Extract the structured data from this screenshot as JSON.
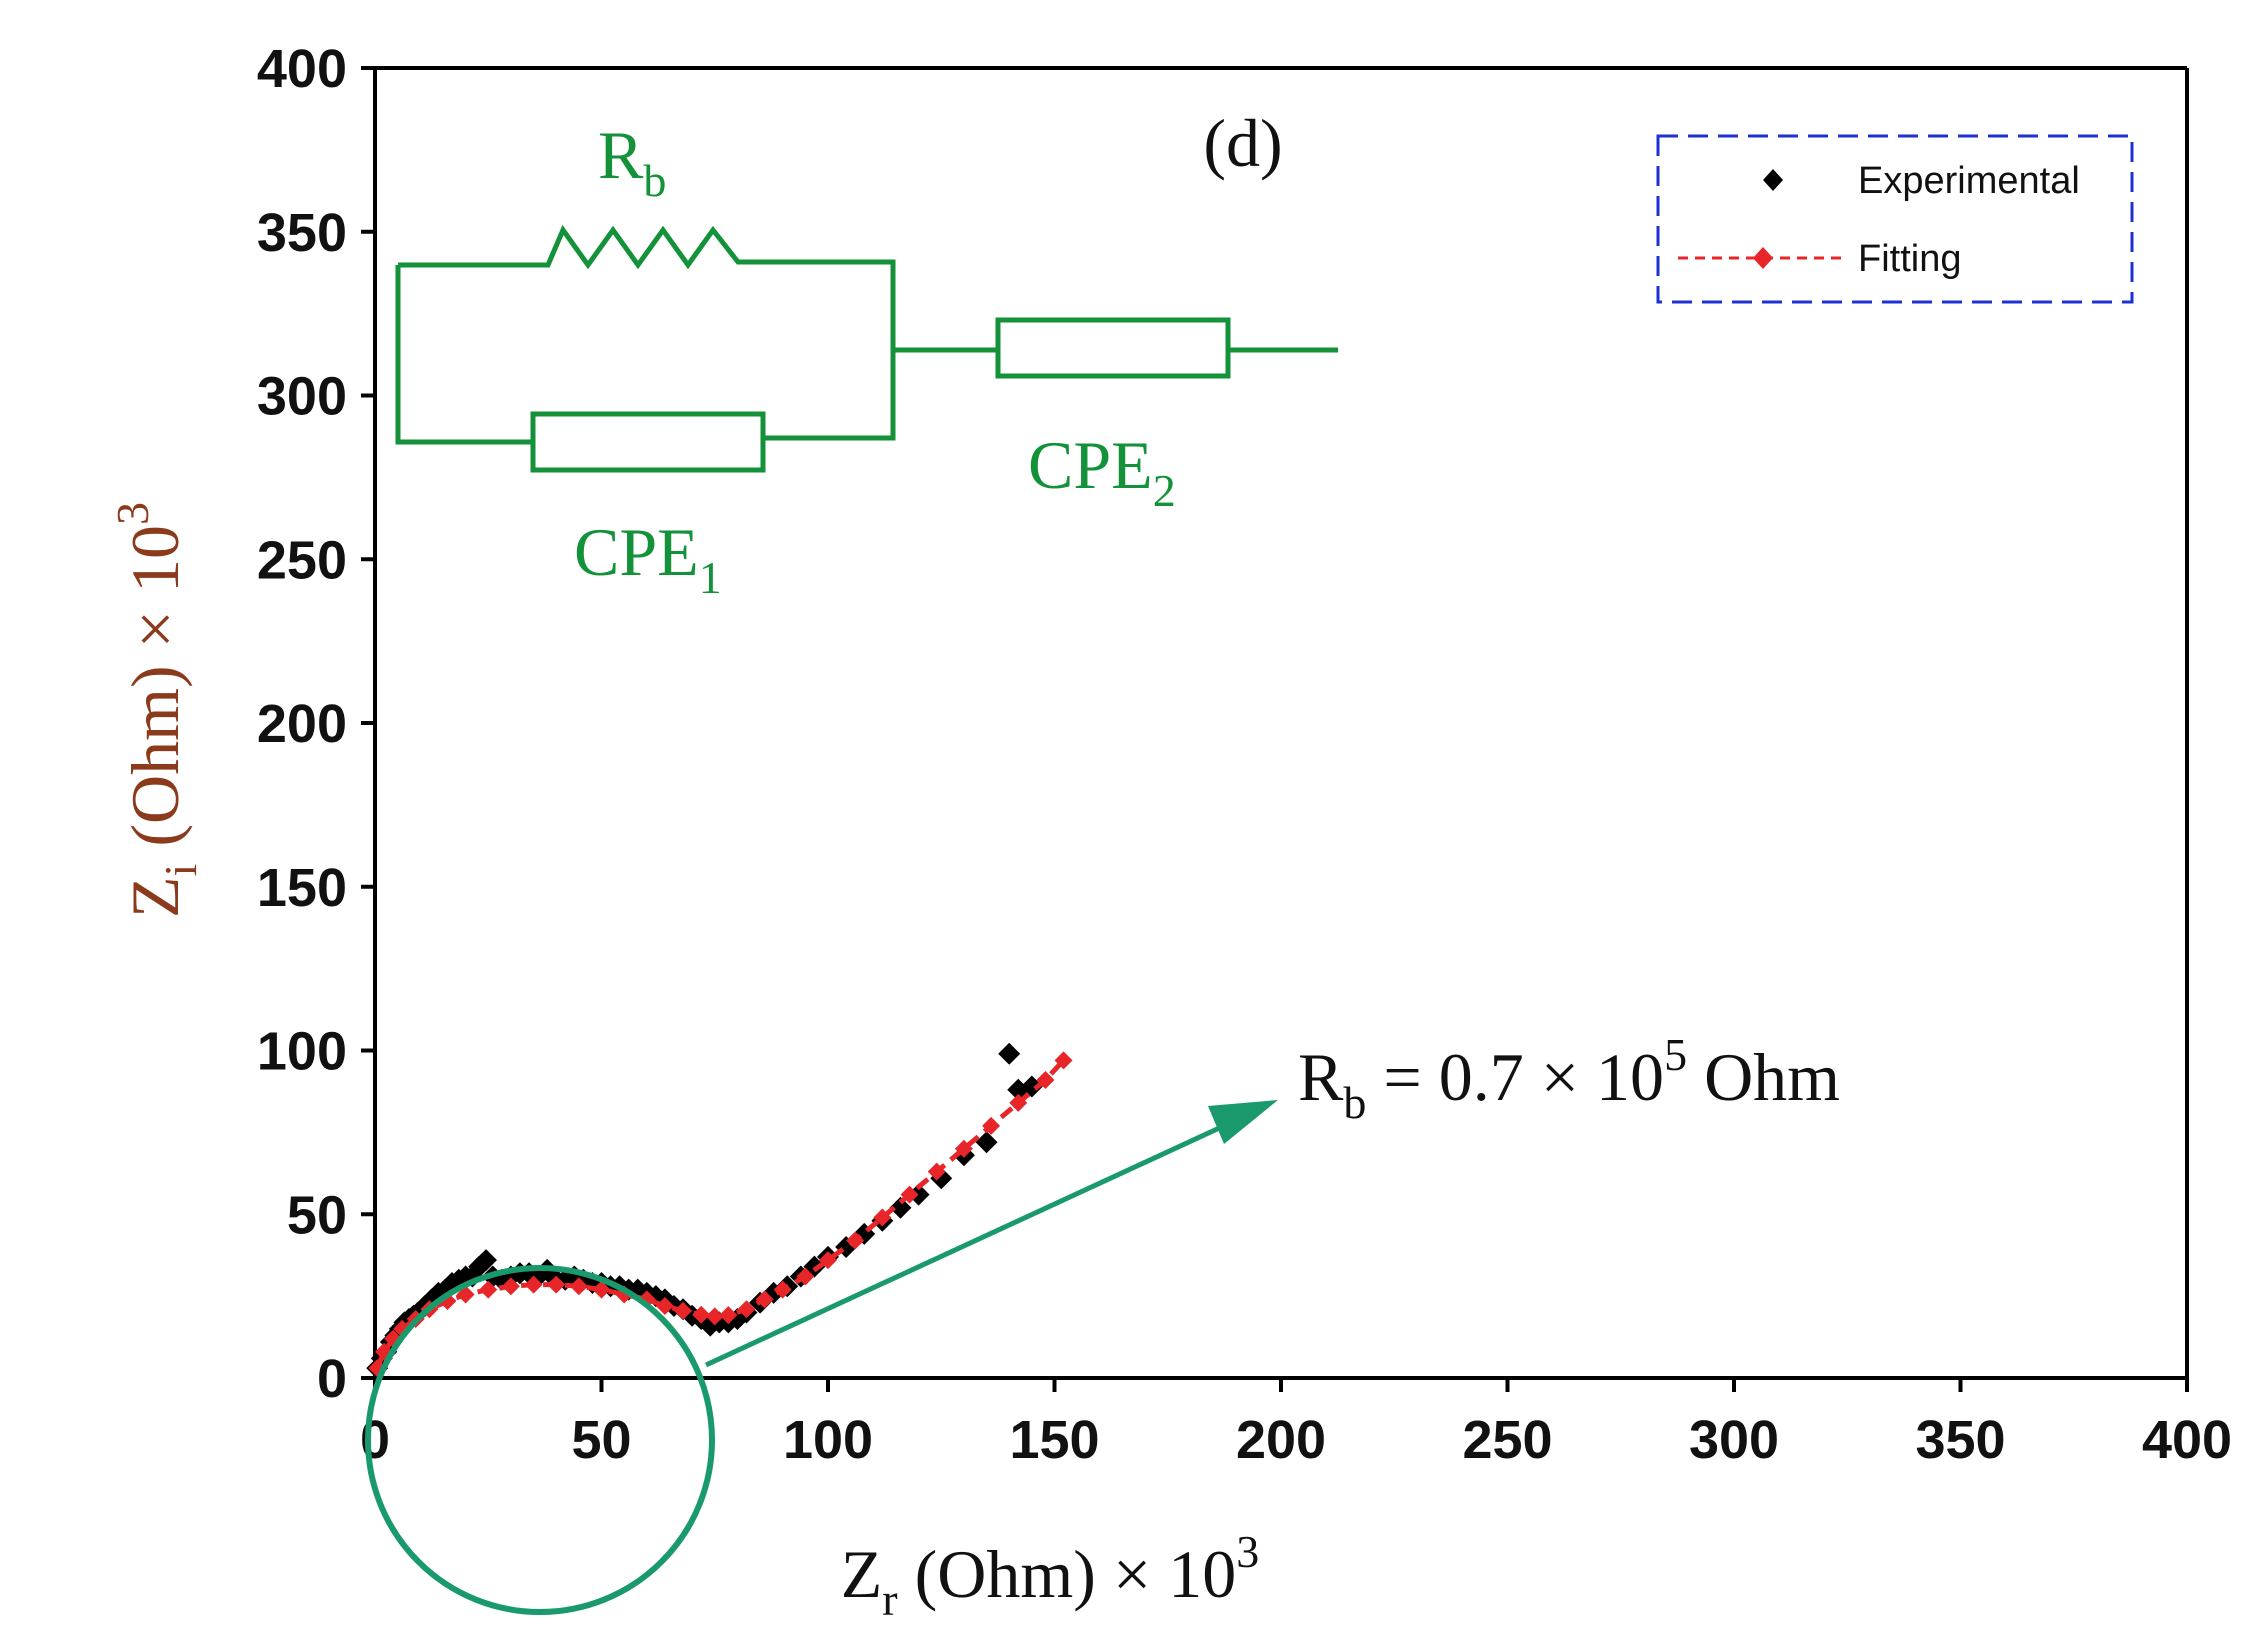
{
  "chart_data": {
    "type": "scatter",
    "title": "(d)",
    "xlabel": {
      "main": "Z",
      "sub": "r",
      "rest": " (Ohm) × 10",
      "sup": "3"
    },
    "ylabel": {
      "main": "Z",
      "sub": "i",
      "rest": " (Ohm) × 10",
      "sup": "3"
    },
    "xlim": [
      0,
      400
    ],
    "ylim": [
      0,
      400
    ],
    "xticks": [
      "0",
      "50",
      "100",
      "150",
      "200",
      "250",
      "300",
      "350",
      "400"
    ],
    "yticks": [
      "0",
      "50",
      "100",
      "150",
      "200",
      "250",
      "300",
      "350",
      "400"
    ],
    "grid": false,
    "legend": {
      "position": "top-right",
      "entries": [
        "Experimental",
        "Fitting"
      ]
    },
    "series": [
      {
        "name": "Experimental",
        "color": "#000000",
        "marker": "diamond",
        "line": "none",
        "x": [
          0.5,
          1.5,
          2.5,
          3.5,
          4.5,
          5.5,
          6.5,
          7.5,
          8.5,
          9.5,
          11,
          12.5,
          14,
          15.5,
          17,
          18.5,
          20,
          21.5,
          23,
          24.5,
          26,
          28,
          30,
          32,
          34,
          36,
          38,
          40,
          42,
          44,
          46,
          48,
          50,
          52,
          54,
          56,
          58,
          60,
          62,
          64,
          66,
          68,
          70,
          72,
          74,
          76,
          78,
          80,
          82,
          85,
          88,
          91,
          94,
          97,
          100,
          104,
          108,
          112,
          116,
          120,
          125,
          130,
          135,
          140,
          142,
          145
        ],
        "y": [
          3,
          6,
          8,
          11,
          13,
          15,
          17,
          18,
          19,
          20,
          22,
          24,
          26,
          27,
          29,
          30,
          31,
          31,
          34,
          36,
          31,
          30,
          31,
          32,
          32,
          31,
          33,
          30,
          30,
          31,
          30,
          29,
          29,
          28,
          28,
          27,
          27,
          26,
          25,
          24,
          22,
          21,
          19,
          18,
          16,
          17,
          17,
          18,
          20,
          23,
          26,
          28,
          31,
          34,
          37,
          40,
          44,
          48,
          52,
          56,
          61,
          68,
          72,
          99,
          88,
          89
        ]
      },
      {
        "name": "Fitting",
        "color": "#e8262a",
        "marker": "diamond",
        "line": "dashed",
        "x": [
          0.5,
          2,
          4,
          6,
          9,
          12,
          16,
          20,
          25,
          30,
          35,
          40,
          45,
          50,
          55,
          60,
          64,
          68,
          72,
          75,
          78,
          82,
          86,
          90,
          95,
          100,
          106,
          112,
          118,
          124,
          130,
          136,
          142,
          148,
          152
        ],
        "y": [
          3,
          8,
          12,
          15,
          18,
          21,
          23.5,
          25.5,
          27,
          28,
          28.5,
          28.5,
          28,
          27,
          25.5,
          24,
          22,
          20.5,
          19.3,
          18.8,
          19.2,
          21,
          24,
          27,
          31,
          36,
          42,
          49,
          56,
          63,
          70,
          77,
          84,
          91,
          97
        ]
      }
    ],
    "annotations": {
      "rb_label": {
        "main": "R",
        "sub": "b",
        "rest": " = 0.7 × 10",
        "sup": "5",
        "tail": " Ohm"
      },
      "circuit": {
        "r_label": {
          "main": "R",
          "sub": "b"
        },
        "cpe1_label": {
          "main": "CPE",
          "sub": "1"
        },
        "cpe2_label": {
          "main": "CPE",
          "sub": "2"
        }
      }
    },
    "colors": {
      "axis": "#000000",
      "annotation": "#14923a",
      "circle": "#1a9a6c",
      "legend_border": "#1f2fd6"
    }
  }
}
